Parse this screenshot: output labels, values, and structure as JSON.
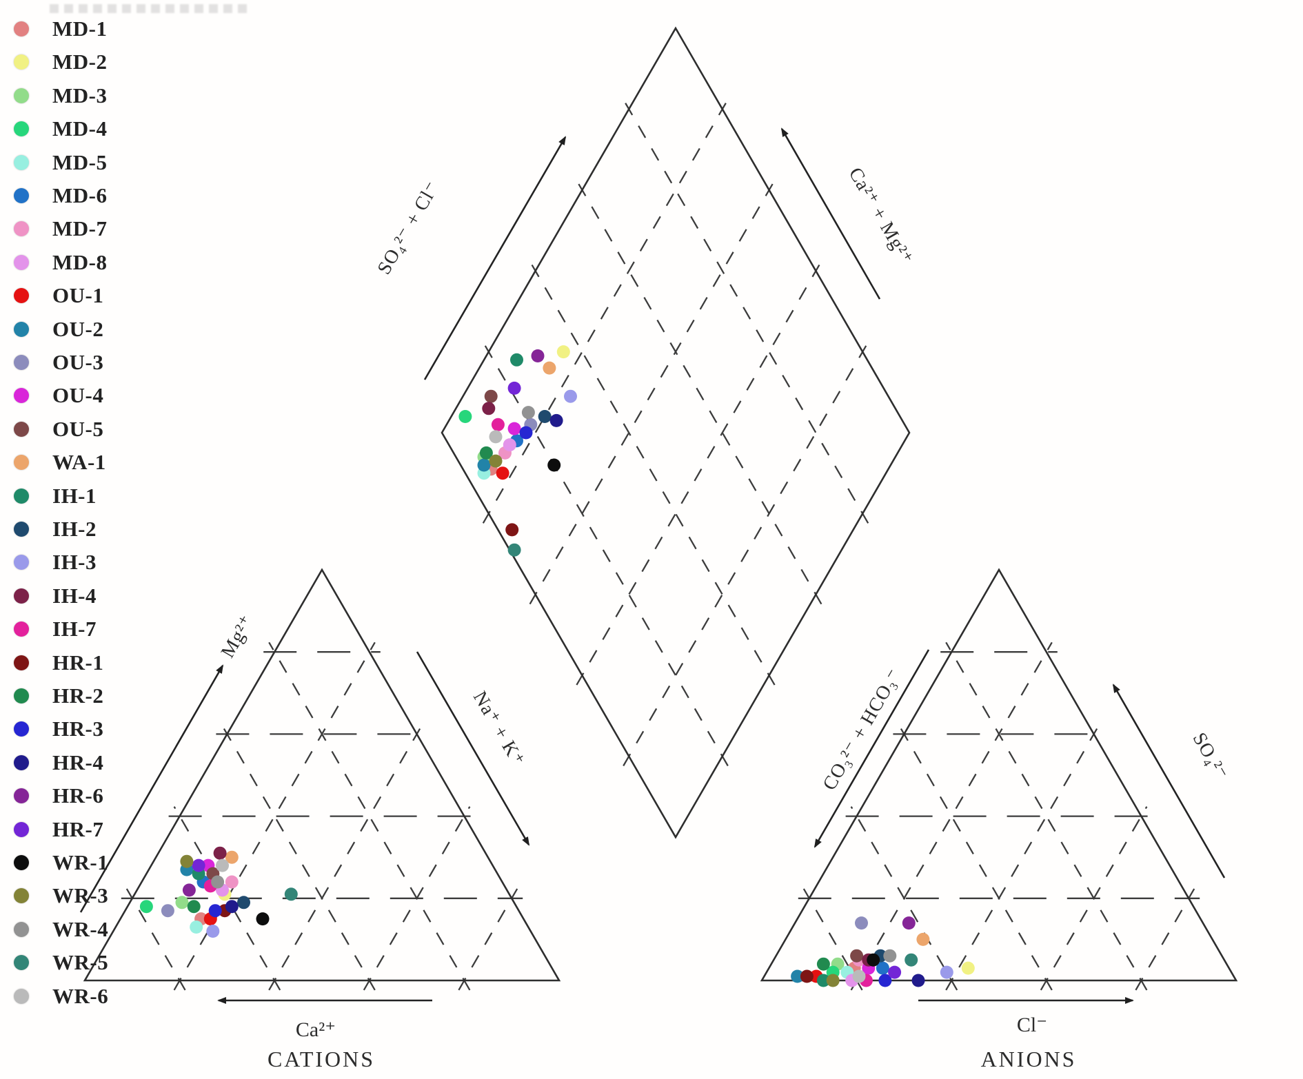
{
  "chart_data": {
    "type": "scatter",
    "subtype": "piper_trilinear_diagram",
    "grid_interval_pct": 20,
    "plots": {
      "cation_triangle": {
        "axes": {
          "left": "Mg²⁺",
          "right": "Na⁺ + K⁺",
          "bottom": "Ca²⁺",
          "title": "CATIONS"
        }
      },
      "anion_triangle": {
        "axes": {
          "left": "CO₃²⁻ + HCO₃⁻",
          "right": "SO₄²⁻",
          "bottom": "Cl⁻",
          "title": "ANIONS"
        }
      },
      "diamond": {
        "axes": {
          "upper_left": "SO₄²⁻ + Cl⁻",
          "upper_right": "Ca²⁺ + Mg²⁺"
        }
      }
    },
    "samples": [
      {
        "name": "MD-1",
        "color": "#e28181",
        "cation": {
          "ca": 68,
          "mg": 15,
          "na_k": 17
        },
        "anion": {
          "hco3_co3": 79,
          "so4": 3,
          "cl": 18
        },
        "diamond": {
          "so4_cl": 6,
          "ca_mg": 85
        }
      },
      {
        "name": "MD-2",
        "color": "#f1f183",
        "cation": {
          "ca": 60,
          "mg": 21,
          "na_k": 19
        },
        "anion": {
          "hco3_co3": 55,
          "so4": 3,
          "cl": 42
        },
        "diamond": {
          "so4_cl": 36,
          "ca_mg": 84
        }
      },
      {
        "name": "MD-3",
        "color": "#92dc8a",
        "cation": {
          "ca": 70,
          "mg": 19,
          "na_k": 11
        },
        "anion": {
          "hco3_co3": 82,
          "so4": 4,
          "cl": 14
        },
        "diamond": {
          "so4_cl": 6,
          "ca_mg": 88
        }
      },
      {
        "name": "MD-4",
        "color": "#27d67b",
        "cation": {
          "ca": 78,
          "mg": 18,
          "na_k": 4
        },
        "anion": {
          "hco3_co3": 84,
          "so4": 2,
          "cl": 14
        },
        "diamond": {
          "so4_cl": 7,
          "ca_mg": 97
        }
      },
      {
        "name": "MD-5",
        "color": "#98efe0",
        "cation": {
          "ca": 70,
          "mg": 13,
          "na_k": 17
        },
        "anion": {
          "hco3_co3": 81,
          "so4": 2,
          "cl": 17
        },
        "diamond": {
          "so4_cl": 4,
          "ca_mg": 86
        }
      },
      {
        "name": "MD-6",
        "color": "#2172c7",
        "cation": {
          "ca": 63,
          "mg": 24,
          "na_k": 13
        },
        "anion": {
          "hco3_co3": 73,
          "so4": 3,
          "cl": 24
        },
        "diamond": {
          "so4_cl": 15,
          "ca_mg": 83
        }
      },
      {
        "name": "MD-7",
        "color": "#ef93c5",
        "cation": {
          "ca": 57,
          "mg": 24,
          "na_k": 19
        },
        "anion": {
          "hco3_co3": 77,
          "so4": 5,
          "cl": 18
        },
        "diamond": {
          "so4_cl": 11,
          "ca_mg": 84
        }
      },
      {
        "name": "MD-8",
        "color": "#e393ea",
        "cation": {
          "ca": 60,
          "mg": 22,
          "na_k": 18
        },
        "anion": {
          "hco3_co3": 81,
          "so4": 0,
          "cl": 19
        },
        "diamond": {
          "so4_cl": 13,
          "ca_mg": 84
        }
      },
      {
        "name": "OU-1",
        "color": "#e51212",
        "cation": {
          "ca": 66,
          "mg": 15,
          "na_k": 19
        },
        "anion": {
          "hco3_co3": 88,
          "so4": 1,
          "cl": 11
        },
        "diamond": {
          "so4_cl": 8,
          "ca_mg": 82
        }
      },
      {
        "name": "OU-2",
        "color": "#2283a8",
        "cation": {
          "ca": 65,
          "mg": 27,
          "na_k": 8
        },
        "anion": {
          "hco3_co3": 92,
          "so4": 1,
          "cl": 7
        },
        "diamond": {
          "so4_cl": 5,
          "ca_mg": 87
        }
      },
      {
        "name": "OU-3",
        "color": "#8c8cbc",
        "cation": {
          "ca": 74,
          "mg": 17,
          "na_k": 9
        },
        "anion": {
          "hco3_co3": 72,
          "so4": 14,
          "cl": 14
        },
        "diamond": {
          "so4_cl": 20,
          "ca_mg": 82
        }
      },
      {
        "name": "OU-4",
        "color": "#d926d9",
        "cation": {
          "ca": 60,
          "mg": 28,
          "na_k": 12
        },
        "anion": {
          "hco3_co3": 76,
          "so4": 3,
          "cl": 21
        },
        "diamond": {
          "so4_cl": 16,
          "ca_mg": 85
        }
      },
      {
        "name": "OU-5",
        "color": "#7d4848",
        "cation": {
          "ca": 60,
          "mg": 26,
          "na_k": 14
        },
        "anion": {
          "hco3_co3": 77,
          "so4": 6,
          "cl": 17
        },
        "diamond": {
          "so4_cl": 15,
          "ca_mg": 94
        }
      },
      {
        "name": "WA-1",
        "color": "#eca56b",
        "cation": {
          "ca": 54,
          "mg": 30,
          "na_k": 16
        },
        "anion": {
          "hco3_co3": 61,
          "so4": 10,
          "cl": 29
        },
        "diamond": {
          "so4_cl": 31,
          "ca_mg": 85
        }
      },
      {
        "name": "IH-1",
        "color": "#1f8a68",
        "cation": {
          "ca": 63,
          "mg": 26,
          "na_k": 11
        },
        "anion": {
          "hco3_co3": 87,
          "so4": 0,
          "cl": 13
        },
        "diamond": {
          "so4_cl": 25,
          "ca_mg": 93
        }
      },
      {
        "name": "IH-2",
        "color": "#1f4a6e",
        "cation": {
          "ca": 57,
          "mg": 19,
          "na_k": 24
        },
        "anion": {
          "hco3_co3": 72,
          "so4": 6,
          "cl": 22
        },
        "diamond": {
          "so4_cl": 24,
          "ca_mg": 80
        }
      },
      {
        "name": "IH-3",
        "color": "#9a9aea",
        "cation": {
          "ca": 67,
          "mg": 12,
          "na_k": 21
        },
        "anion": {
          "hco3_co3": 60,
          "so4": 2,
          "cl": 38
        },
        "diamond": {
          "so4_cl": 32,
          "ca_mg": 77
        }
      },
      {
        "name": "IH-4",
        "color": "#7c2148",
        "cation": {
          "ca": 56,
          "mg": 31,
          "na_k": 13
        },
        "anion": {
          "hco3_co3": 75,
          "so4": 5,
          "cl": 20
        },
        "diamond": {
          "so4_cl": 13,
          "ca_mg": 93
        }
      },
      {
        "name": "IH-7",
        "color": "#e3219c",
        "cation": {
          "ca": 62,
          "mg": 23,
          "na_k": 15
        },
        "anion": {
          "hco3_co3": 78,
          "so4": 0,
          "cl": 22
        },
        "diamond": {
          "so4_cl": 13,
          "ca_mg": 89
        }
      },
      {
        "name": "HR-1",
        "color": "#7e1515",
        "cation": {
          "ca": 62,
          "mg": 17,
          "na_k": 21
        },
        "anion": {
          "hco3_co3": 90,
          "so4": 1,
          "cl": 9
        },
        "diamond": {
          "so4_cl": 3,
          "ca_mg": 73
        }
      },
      {
        "name": "HR-2",
        "color": "#218a4f",
        "cation": {
          "ca": 68,
          "mg": 18,
          "na_k": 14
        },
        "anion": {
          "hco3_co3": 85,
          "so4": 4,
          "cl": 11
        },
        "diamond": {
          "so4_cl": 7,
          "ca_mg": 88
        }
      },
      {
        "name": "HR-3",
        "color": "#2626d2",
        "cation": {
          "ca": 64,
          "mg": 17,
          "na_k": 19
        },
        "anion": {
          "hco3_co3": 74,
          "so4": 0,
          "cl": 26
        },
        "diamond": {
          "so4_cl": 18,
          "ca_mg": 82
        }
      },
      {
        "name": "HR-4",
        "color": "#201b8c",
        "cation": {
          "ca": 60,
          "mg": 18,
          "na_k": 22
        },
        "anion": {
          "hco3_co3": 67,
          "so4": 0,
          "cl": 33
        },
        "diamond": {
          "so4_cl": 26,
          "ca_mg": 77
        }
      },
      {
        "name": "HR-6",
        "color": "#852597",
        "cation": {
          "ca": 67,
          "mg": 22,
          "na_k": 11
        },
        "anion": {
          "hco3_co3": 62,
          "so4": 14,
          "cl": 24
        },
        "diamond": {
          "so4_cl": 30,
          "ca_mg": 89
        }
      },
      {
        "name": "HR-7",
        "color": "#7326d6",
        "cation": {
          "ca": 62,
          "mg": 28,
          "na_k": 10
        },
        "anion": {
          "hco3_co3": 71,
          "so4": 2,
          "cl": 27
        },
        "diamond": {
          "so4_cl": 21,
          "ca_mg": 90
        }
      },
      {
        "name": "WR-1",
        "color": "#0d0d0d",
        "cation": {
          "ca": 55,
          "mg": 15,
          "na_k": 30
        },
        "anion": {
          "hco3_co3": 74,
          "so4": 5,
          "cl": 21
        },
        "diamond": {
          "so4_cl": 20,
          "ca_mg": 72
        }
      },
      {
        "name": "WR-3",
        "color": "#838337",
        "cation": {
          "ca": 64,
          "mg": 29,
          "na_k": 7
        },
        "anion": {
          "hco3_co3": 85,
          "so4": 0,
          "cl": 15
        },
        "diamond": {
          "so4_cl": 8,
          "ca_mg": 85
        }
      },
      {
        "name": "WR-4",
        "color": "#929292",
        "cation": {
          "ca": 60,
          "mg": 24,
          "na_k": 16
        },
        "anion": {
          "hco3_co3": 70,
          "so4": 6,
          "cl": 24
        },
        "diamond": {
          "so4_cl": 21,
          "ca_mg": 84
        }
      },
      {
        "name": "WR-5",
        "color": "#338577",
        "cation": {
          "ca": 46,
          "mg": 21,
          "na_k": 33
        },
        "anion": {
          "hco3_co3": 66,
          "so4": 5,
          "cl": 29
        },
        "diamond": {
          "so4_cl": 1,
          "ca_mg": 70
        }
      },
      {
        "name": "WR-6",
        "color": "#bababa",
        "cation": {
          "ca": 57,
          "mg": 28,
          "na_k": 15
        },
        "anion": {
          "hco3_co3": 79,
          "so4": 1,
          "cl": 20
        },
        "diamond": {
          "so4_cl": 11,
          "ca_mg": 88
        }
      }
    ]
  }
}
